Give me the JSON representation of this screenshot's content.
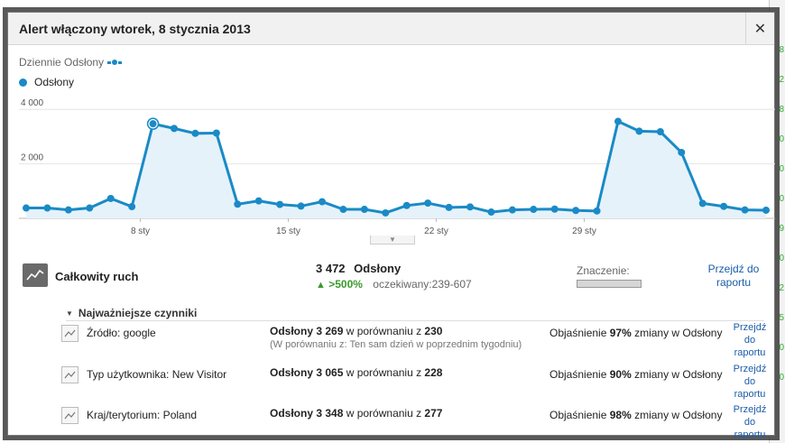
{
  "backdrop": {
    "items": [
      "8",
      "2",
      "8",
      "0",
      "0",
      "0",
      "9",
      "0",
      "2",
      "5",
      "0",
      "0"
    ]
  },
  "dialog": {
    "title": "Alert włączony wtorek, 8 stycznia 2013",
    "close": "✕"
  },
  "metric": {
    "label": "Dziennie Odsłony"
  },
  "legend": {
    "label": "Odsłony"
  },
  "chart_data": {
    "type": "line",
    "ylabel_ticks": [
      "4 000",
      "2 000"
    ],
    "ylim": [
      0,
      4000
    ],
    "x_ticks": [
      {
        "label": "8 sty",
        "index": 5
      },
      {
        "label": "15 sty",
        "index": 12
      },
      {
        "label": "22 sty",
        "index": 19
      },
      {
        "label": "29 sty",
        "index": 26
      }
    ],
    "series": [
      {
        "name": "Odsłony",
        "color": "#1a8ac6",
        "highlight_index": 6,
        "values": [
          380,
          380,
          310,
          380,
          730,
          430,
          3472,
          3300,
          3120,
          3130,
          520,
          640,
          510,
          450,
          610,
          330,
          330,
          200,
          470,
          560,
          400,
          420,
          230,
          310,
          330,
          340,
          290,
          270,
          3560,
          3200,
          3180,
          2420,
          550,
          440,
          310,
          300
        ]
      }
    ],
    "grid": true
  },
  "summary": {
    "label": "Całkowity ruch",
    "value": "3 472",
    "unit": "Odsłony",
    "arrow": "▲",
    "change": ">500%",
    "expected": "oczekiwany:239-607",
    "significance_label": "Znaczenie:",
    "link": "Przejdź do raportu",
    "significance_level": 1.0
  },
  "factors": {
    "heading": "Najważniejsze czynniki",
    "tri": "▼",
    "items": [
      {
        "name": "Źródło: google",
        "value_label": "Odsłony 3 269",
        "value_rest": " w porównaniu z ",
        "compare": "230",
        "sub": "(W porównaniu z: Ten sam dzień w poprzednim tygodniu)",
        "exp_pre": "Objaśnienie ",
        "exp_pct": "97%",
        "exp_post": " zmiany w Odsłony",
        "link": "Przejdź do raportu"
      },
      {
        "name": "Typ użytkownika: New Visitor",
        "value_label": "Odsłony 3 065",
        "value_rest": " w porównaniu z ",
        "compare": "228",
        "sub": "",
        "exp_pre": "Objaśnienie ",
        "exp_pct": "90%",
        "exp_post": " zmiany w Odsłony",
        "link": "Przejdź do raportu"
      },
      {
        "name": "Kraj/terytorium: Poland",
        "value_label": "Odsłony 3 348",
        "value_rest": " w porównaniu z ",
        "compare": "277",
        "sub": "",
        "exp_pre": "Objaśnienie ",
        "exp_pct": "98%",
        "exp_post": " zmiany w Odsłony",
        "link": "Przejdź do raportu"
      }
    ]
  }
}
